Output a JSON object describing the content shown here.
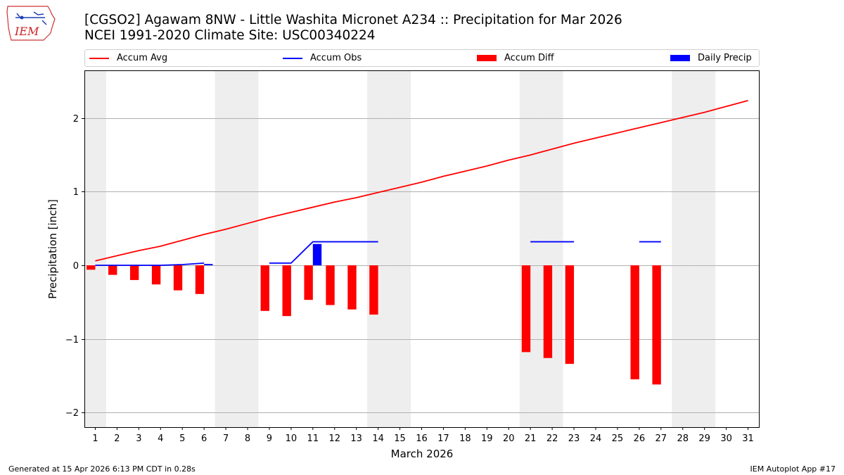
{
  "header": {
    "title_line1": "[CGSO2] Agawam 8NW - Little Washita Micronet A234 :: Precipitation for Mar 2026",
    "title_line2": "NCEI 1991-2020 Climate Site: USC00340224"
  },
  "logo": {
    "text": "IEM"
  },
  "footer": {
    "left": "Generated at 15 Apr 2026 6:13 PM CDT in 0.28s",
    "right": "IEM Autoplot App #17"
  },
  "colors": {
    "accum_avg": "#ff0000",
    "accum_obs": "#0000ff",
    "accum_diff": "#ff0000",
    "daily_precip": "#0000ff",
    "weekend_band": "#eeeeee",
    "grid": "#b0b0b0"
  },
  "legend": [
    {
      "key": "accum_avg",
      "label": "Accum Avg",
      "kind": "line"
    },
    {
      "key": "accum_obs",
      "label": "Accum Obs",
      "kind": "line"
    },
    {
      "key": "accum_diff",
      "label": "Accum Diff",
      "kind": "bar"
    },
    {
      "key": "daily_precip",
      "label": "Daily Precip",
      "kind": "bar"
    }
  ],
  "chart_data": {
    "type": "bar",
    "title": "[CGSO2] Agawam 8NW - Little Washita Micronet A234 :: Precipitation for Mar 2026",
    "xlabel": "March 2026",
    "ylabel": "Precipitation [inch]",
    "xlim": [
      0.5,
      31.5
    ],
    "ylim": [
      -2.2,
      2.65
    ],
    "grid": "y",
    "legend_position": "top",
    "x_ticks": [
      1,
      2,
      3,
      4,
      5,
      6,
      7,
      8,
      9,
      10,
      11,
      12,
      13,
      14,
      15,
      16,
      17,
      18,
      19,
      20,
      21,
      22,
      23,
      24,
      25,
      26,
      27,
      28,
      29,
      30,
      31
    ],
    "y_ticks": [
      -2,
      -1,
      0,
      1,
      2
    ],
    "y_tick_labels": [
      "−2",
      "−1",
      "0",
      "1",
      "2"
    ],
    "weekend_days": [
      1,
      7,
      8,
      14,
      15,
      21,
      22,
      28,
      29
    ],
    "accum_avg": {
      "x": [
        1,
        2,
        3,
        4,
        5,
        6,
        7,
        8,
        9,
        10,
        11,
        12,
        13,
        14,
        15,
        16,
        17,
        18,
        19,
        20,
        21,
        22,
        23,
        24,
        25,
        26,
        27,
        28,
        29,
        30,
        31
      ],
      "y": [
        0.06,
        0.13,
        0.2,
        0.26,
        0.34,
        0.42,
        0.49,
        0.57,
        0.65,
        0.72,
        0.79,
        0.86,
        0.92,
        0.99,
        1.06,
        1.13,
        1.21,
        1.28,
        1.35,
        1.43,
        1.5,
        1.58,
        1.66,
        1.73,
        1.8,
        1.87,
        1.94,
        2.01,
        2.08,
        2.16,
        2.24
      ]
    },
    "accum_obs": {
      "segments": [
        {
          "x": [
            1,
            2,
            3,
            4,
            5,
            6
          ],
          "y": [
            0.0,
            0.0,
            0.0,
            0.0,
            0.01,
            0.03
          ]
        },
        {
          "x": [
            6,
            6.4
          ],
          "y": [
            0.01,
            0.01
          ]
        },
        {
          "x": [
            9,
            10,
            11,
            12,
            13,
            14
          ],
          "y": [
            0.03,
            0.03,
            0.32,
            0.32,
            0.32,
            0.32
          ]
        },
        {
          "x": [
            21,
            22,
            23
          ],
          "y": [
            0.32,
            0.32,
            0.32
          ]
        },
        {
          "x": [
            26,
            27
          ],
          "y": [
            0.32,
            0.32
          ]
        }
      ]
    },
    "accum_diff": {
      "x": [
        1,
        2,
        3,
        4,
        5,
        6,
        9,
        10,
        11,
        12,
        13,
        14,
        21,
        22,
        23,
        26,
        27
      ],
      "y": [
        -0.06,
        -0.13,
        -0.2,
        -0.26,
        -0.34,
        -0.39,
        -0.62,
        -0.69,
        -0.47,
        -0.54,
        -0.6,
        -0.67,
        -1.18,
        -1.26,
        -1.34,
        -1.55,
        -1.62
      ]
    },
    "daily_precip": {
      "x": [
        11
      ],
      "y": [
        0.29
      ]
    }
  }
}
